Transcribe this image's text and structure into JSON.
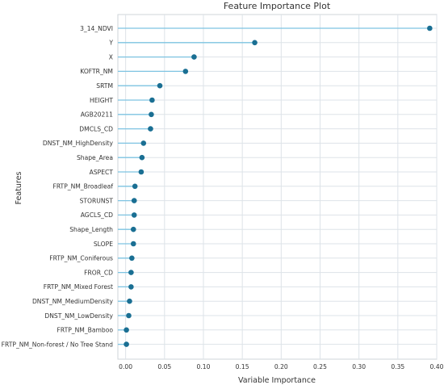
{
  "chart_data": {
    "type": "lollipop",
    "title": "Feature Importance Plot",
    "xlabel": "Variable Importance",
    "ylabel": "Features",
    "xlim": [
      -0.01,
      0.4
    ],
    "xticks": [
      "0.00",
      "0.05",
      "0.10",
      "0.15",
      "0.20",
      "0.25",
      "0.30",
      "0.35",
      "0.40"
    ],
    "grid": true,
    "colors": {
      "marker": "#1a6f93",
      "stem": "#7ec4e2",
      "grid": "#dde3e8",
      "frame": "#cfd5da"
    },
    "categories": [
      "3_14_NDVI",
      "Y",
      "X",
      "KOFTR_NM",
      "SRTM",
      "HEIGHT",
      "AGB20211",
      "DMCLS_CD",
      "DNST_NM_HighDensity",
      "Shape_Area",
      "ASPECT",
      "FRTP_NM_Broadleaf",
      "STORUNST",
      "AGCLS_CD",
      "Shape_Length",
      "SLOPE",
      "FRTP_NM_Coniferous",
      "FROR_CD",
      "FRTP_NM_Mixed Forest",
      "DNST_NM_MediumDensity",
      "DNST_NM_LowDensity",
      "FRTP_NM_Bamboo",
      "FRTP_NM_Non-forest / No Tree Stand"
    ],
    "values": [
      0.391,
      0.166,
      0.088,
      0.077,
      0.044,
      0.034,
      0.033,
      0.032,
      0.023,
      0.021,
      0.02,
      0.012,
      0.011,
      0.011,
      0.01,
      0.01,
      0.008,
      0.007,
      0.007,
      0.005,
      0.004,
      0.001,
      0.001
    ]
  }
}
